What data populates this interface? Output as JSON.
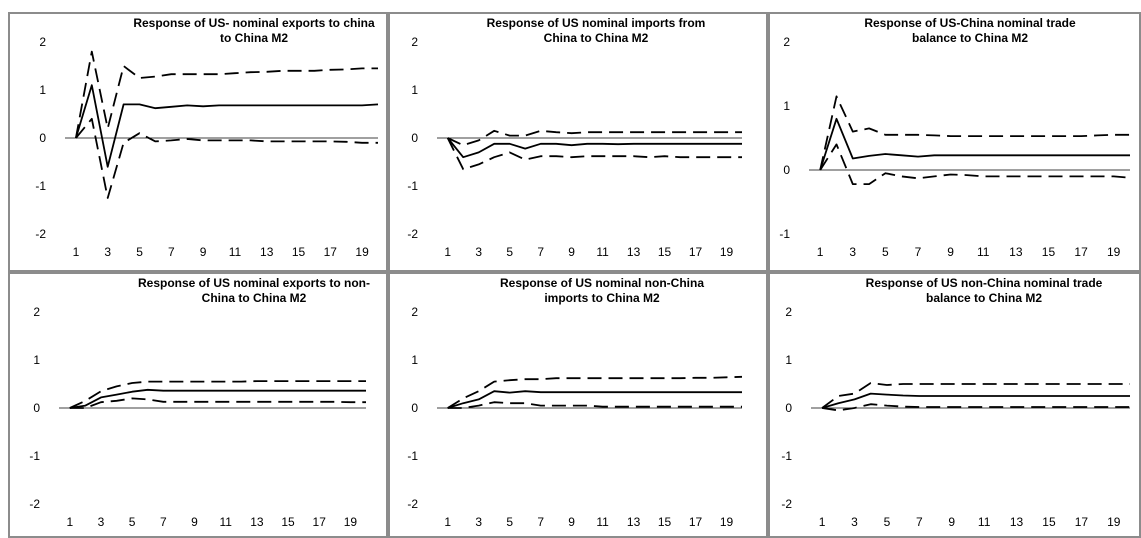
{
  "chart_data": [
    {
      "type": "line",
      "title": "Response of US- nominal exports to china\nto China M2",
      "x": [
        1,
        2,
        3,
        4,
        5,
        6,
        7,
        8,
        9,
        10,
        11,
        12,
        13,
        14,
        15,
        16,
        17,
        18,
        19,
        20
      ],
      "xticks": [
        1,
        3,
        5,
        7,
        9,
        11,
        13,
        15,
        17,
        19
      ],
      "yticks": [
        -2,
        -1,
        0,
        1,
        2
      ],
      "ylim": [
        -2,
        2
      ],
      "series": [
        {
          "style": "solid",
          "values": [
            0,
            1.1,
            -0.6,
            0.7,
            0.7,
            0.62,
            0.65,
            0.68,
            0.66,
            0.68,
            0.68,
            0.68,
            0.68,
            0.68,
            0.68,
            0.68,
            0.68,
            0.68,
            0.68,
            0.7
          ]
        },
        {
          "style": "dashed",
          "values": [
            0,
            1.8,
            0.2,
            1.5,
            1.25,
            1.28,
            1.33,
            1.33,
            1.33,
            1.33,
            1.35,
            1.37,
            1.38,
            1.4,
            1.4,
            1.4,
            1.42,
            1.43,
            1.45,
            1.45
          ]
        },
        {
          "style": "dashed",
          "values": [
            0,
            0.4,
            -1.25,
            -0.1,
            0.1,
            -0.07,
            -0.05,
            -0.02,
            -0.05,
            -0.05,
            -0.05,
            -0.05,
            -0.07,
            -0.07,
            -0.07,
            -0.07,
            -0.07,
            -0.08,
            -0.1,
            -0.1
          ]
        }
      ]
    },
    {
      "type": "line",
      "title": "Response of US nominal imports from\nChina to China M2",
      "x": [
        1,
        2,
        3,
        4,
        5,
        6,
        7,
        8,
        9,
        10,
        11,
        12,
        13,
        14,
        15,
        16,
        17,
        18,
        19,
        20
      ],
      "xticks": [
        1,
        3,
        5,
        7,
        9,
        11,
        13,
        15,
        17,
        19
      ],
      "yticks": [
        -2,
        -1,
        0,
        1,
        2
      ],
      "ylim": [
        -2,
        2
      ],
      "series": [
        {
          "style": "solid",
          "values": [
            0,
            -0.4,
            -0.3,
            -0.12,
            -0.12,
            -0.22,
            -0.12,
            -0.12,
            -0.15,
            -0.12,
            -0.12,
            -0.13,
            -0.12,
            -0.12,
            -0.12,
            -0.12,
            -0.12,
            -0.12,
            -0.12,
            -0.12
          ]
        },
        {
          "style": "dashed",
          "values": [
            0,
            -0.15,
            -0.05,
            0.15,
            0.05,
            0.05,
            0.15,
            0.12,
            0.1,
            0.12,
            0.12,
            0.12,
            0.12,
            0.12,
            0.12,
            0.12,
            0.12,
            0.12,
            0.12,
            0.12
          ]
        },
        {
          "style": "dashed",
          "values": [
            0,
            -0.65,
            -0.55,
            -0.4,
            -0.3,
            -0.45,
            -0.38,
            -0.38,
            -0.4,
            -0.38,
            -0.38,
            -0.38,
            -0.38,
            -0.4,
            -0.38,
            -0.4,
            -0.4,
            -0.4,
            -0.4,
            -0.4
          ]
        }
      ]
    },
    {
      "type": "line",
      "title": "Response of  US-China nominal trade\nbalance to  China M2",
      "x": [
        1,
        2,
        3,
        4,
        5,
        6,
        7,
        8,
        9,
        10,
        11,
        12,
        13,
        14,
        15,
        16,
        17,
        18,
        19,
        20
      ],
      "xticks": [
        1,
        3,
        5,
        7,
        9,
        11,
        13,
        15,
        17,
        19
      ],
      "yticks": [
        -1,
        0,
        1,
        2
      ],
      "ylim": [
        -1,
        2
      ],
      "series": [
        {
          "style": "solid",
          "values": [
            0,
            0.8,
            0.18,
            0.22,
            0.25,
            0.23,
            0.21,
            0.23,
            0.23,
            0.23,
            0.23,
            0.23,
            0.23,
            0.23,
            0.23,
            0.23,
            0.23,
            0.23,
            0.23,
            0.23
          ]
        },
        {
          "style": "dashed",
          "values": [
            0,
            1.15,
            0.6,
            0.65,
            0.55,
            0.55,
            0.55,
            0.54,
            0.53,
            0.53,
            0.53,
            0.53,
            0.53,
            0.53,
            0.53,
            0.53,
            0.53,
            0.54,
            0.55,
            0.55
          ]
        },
        {
          "style": "dashed",
          "values": [
            0,
            0.4,
            -0.22,
            -0.22,
            -0.05,
            -0.1,
            -0.13,
            -0.1,
            -0.07,
            -0.08,
            -0.1,
            -0.1,
            -0.1,
            -0.1,
            -0.1,
            -0.1,
            -0.1,
            -0.1,
            -0.1,
            -0.12
          ]
        }
      ]
    },
    {
      "type": "line",
      "title": "Response of US nominal exports to non-\nChina to China M2",
      "x": [
        1,
        2,
        3,
        4,
        5,
        6,
        7,
        8,
        9,
        10,
        11,
        12,
        13,
        14,
        15,
        16,
        17,
        18,
        19,
        20
      ],
      "xticks": [
        1,
        3,
        5,
        7,
        9,
        11,
        13,
        15,
        17,
        19
      ],
      "yticks": [
        -2,
        -1,
        0,
        1,
        2
      ],
      "ylim": [
        -2,
        2
      ],
      "series": [
        {
          "style": "solid",
          "values": [
            0,
            0.05,
            0.22,
            0.28,
            0.34,
            0.38,
            0.36,
            0.36,
            0.36,
            0.36,
            0.36,
            0.36,
            0.36,
            0.36,
            0.36,
            0.36,
            0.36,
            0.36,
            0.36,
            0.36
          ]
        },
        {
          "style": "dashed",
          "values": [
            0,
            0.15,
            0.35,
            0.45,
            0.52,
            0.55,
            0.55,
            0.55,
            0.55,
            0.55,
            0.55,
            0.55,
            0.56,
            0.56,
            0.56,
            0.56,
            0.56,
            0.56,
            0.56,
            0.56
          ]
        },
        {
          "style": "dashed",
          "values": [
            0,
            0,
            0.12,
            0.15,
            0.2,
            0.18,
            0.13,
            0.13,
            0.13,
            0.13,
            0.13,
            0.13,
            0.13,
            0.13,
            0.13,
            0.13,
            0.13,
            0.13,
            0.12,
            0.12
          ]
        }
      ]
    },
    {
      "type": "line",
      "title": "Response of  US nominal  non-China\nimports to China M2",
      "x": [
        1,
        2,
        3,
        4,
        5,
        6,
        7,
        8,
        9,
        10,
        11,
        12,
        13,
        14,
        15,
        16,
        17,
        18,
        19,
        20
      ],
      "xticks": [
        1,
        3,
        5,
        7,
        9,
        11,
        13,
        15,
        17,
        19
      ],
      "yticks": [
        -2,
        -1,
        0,
        1,
        2
      ],
      "ylim": [
        -2,
        2
      ],
      "series": [
        {
          "style": "solid",
          "values": [
            0,
            0.1,
            0.18,
            0.35,
            0.32,
            0.35,
            0.33,
            0.33,
            0.33,
            0.33,
            0.33,
            0.33,
            0.33,
            0.33,
            0.33,
            0.33,
            0.33,
            0.33,
            0.33,
            0.33
          ]
        },
        {
          "style": "dashed",
          "values": [
            0,
            0.2,
            0.35,
            0.55,
            0.58,
            0.6,
            0.6,
            0.62,
            0.62,
            0.62,
            0.62,
            0.62,
            0.62,
            0.62,
            0.62,
            0.62,
            0.63,
            0.63,
            0.64,
            0.65
          ]
        },
        {
          "style": "dashed",
          "values": [
            0,
            0,
            0.05,
            0.12,
            0.1,
            0.1,
            0.05,
            0.05,
            0.05,
            0.05,
            0.03,
            0.03,
            0.03,
            0.03,
            0.03,
            0.03,
            0.03,
            0.03,
            0.03,
            0.03
          ]
        }
      ]
    },
    {
      "type": "line",
      "title": "Response of  US  non-China nominal trade\nbalance to China M2",
      "x": [
        1,
        2,
        3,
        4,
        5,
        6,
        7,
        8,
        9,
        10,
        11,
        12,
        13,
        14,
        15,
        16,
        17,
        18,
        19,
        20
      ],
      "xticks": [
        1,
        3,
        5,
        7,
        9,
        11,
        13,
        15,
        17,
        19
      ],
      "yticks": [
        -2,
        -1,
        0,
        1,
        2
      ],
      "ylim": [
        -2,
        2
      ],
      "series": [
        {
          "style": "solid",
          "values": [
            0,
            0.1,
            0.18,
            0.3,
            0.28,
            0.26,
            0.25,
            0.25,
            0.25,
            0.25,
            0.25,
            0.25,
            0.25,
            0.25,
            0.25,
            0.25,
            0.25,
            0.25,
            0.25,
            0.25
          ]
        },
        {
          "style": "dashed",
          "values": [
            0,
            0.25,
            0.3,
            0.52,
            0.48,
            0.5,
            0.5,
            0.5,
            0.5,
            0.5,
            0.5,
            0.5,
            0.5,
            0.5,
            0.5,
            0.5,
            0.5,
            0.5,
            0.5,
            0.5
          ]
        },
        {
          "style": "dashed",
          "values": [
            0,
            -0.05,
            0,
            0.08,
            0.05,
            0.03,
            0.02,
            0.02,
            0.02,
            0.02,
            0.02,
            0.02,
            0.02,
            0.02,
            0.02,
            0.02,
            0.02,
            0.02,
            0.02,
            0.02
          ]
        }
      ]
    }
  ]
}
